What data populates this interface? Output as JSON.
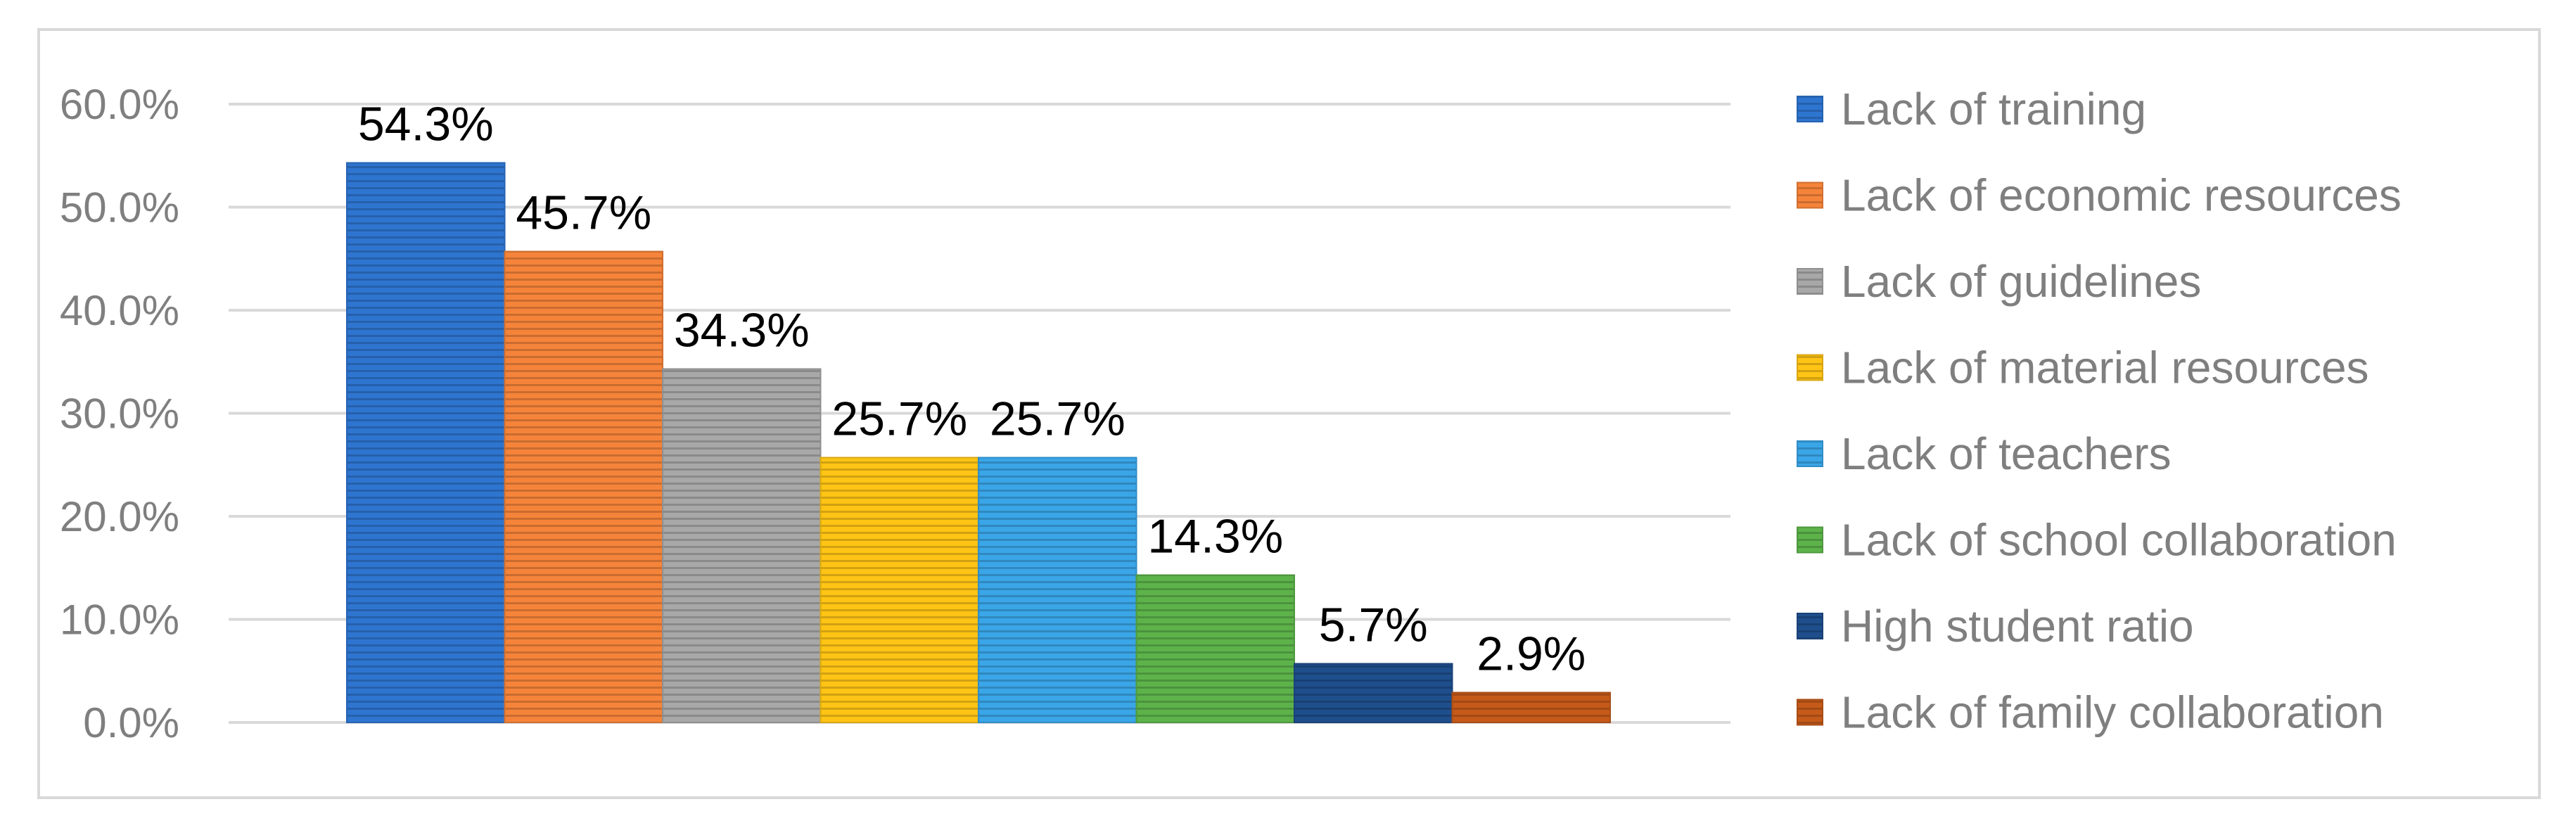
{
  "chart_data": {
    "type": "bar",
    "categories": [
      "Lack of training",
      "Lack of economic resources",
      "Lack of guidelines",
      "Lack of material resources",
      "Lack of teachers",
      "Lack of school collaboration",
      "High student ratio",
      "Lack of family collaboration"
    ],
    "values": [
      54.3,
      45.7,
      34.3,
      25.7,
      25.7,
      14.3,
      5.7,
      2.9
    ],
    "data_labels": [
      "54.3%",
      "45.7%",
      "34.3%",
      "25.7%",
      "25.7%",
      "14.3%",
      "5.7%",
      "2.9%"
    ],
    "colors": [
      "#2e75d0",
      "#f5843a",
      "#a8a8a8",
      "#ffc415",
      "#3aa6e8",
      "#5db34a",
      "#1f4e8c",
      "#c55a1a"
    ],
    "y_ticks": [
      "0.0%",
      "10.0%",
      "20.0%",
      "30.0%",
      "40.0%",
      "50.0%",
      "60.0%"
    ],
    "ylim": [
      0,
      60
    ],
    "grid": true,
    "legend_position": "right",
    "bar_fill": "horizontal-stripes",
    "title": "",
    "xlabel": "",
    "ylabel": ""
  }
}
